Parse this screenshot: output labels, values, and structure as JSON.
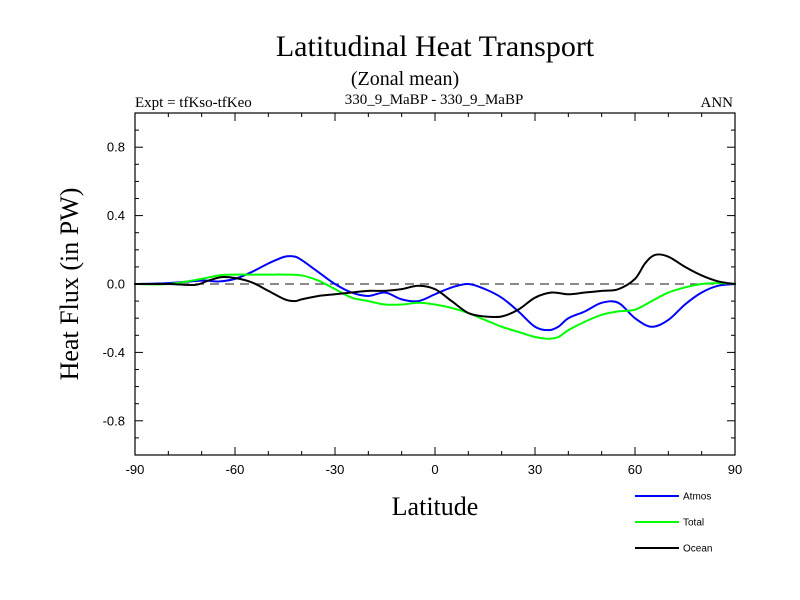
{
  "chart_data": {
    "type": "line",
    "title": "Latitudinal Heat Transport",
    "subtitle": "(Zonal mean)",
    "left_label": "Expt = tfKso-tfKeo",
    "center_label": "330_9_MaBP - 330_9_MaBP",
    "right_label": "ANN",
    "xlabel": "Latitude",
    "ylabel": "Heat Flux (in PW)",
    "xlim": [
      -90,
      90
    ],
    "ylim": [
      -1.0,
      1.0
    ],
    "xticks": [
      -90,
      -60,
      -30,
      0,
      30,
      60,
      90
    ],
    "xtick_labels": [
      "-90",
      "-60",
      "-30",
      "0",
      "30",
      "60",
      "90"
    ],
    "yticks": [
      0.8,
      0.4,
      0.0,
      -0.4,
      -0.8
    ],
    "ytick_labels": [
      "0.8",
      "0.4",
      "0.0",
      "-0.4",
      "-0.8"
    ],
    "reference_line": 0.0,
    "series": [
      {
        "name": "Atmos",
        "color": "#0000ff",
        "x": [
          -90,
          -80,
          -70,
          -65,
          -60,
          -55,
          -50,
          -45,
          -42,
          -40,
          -35,
          -30,
          -25,
          -20,
          -15,
          -10,
          -5,
          0,
          5,
          10,
          15,
          20,
          25,
          30,
          34,
          37,
          40,
          45,
          50,
          55,
          60,
          65,
          70,
          75,
          80,
          85,
          90
        ],
        "y": [
          0.0,
          0.005,
          0.02,
          0.015,
          0.03,
          0.07,
          0.12,
          0.16,
          0.16,
          0.14,
          0.07,
          0.0,
          -0.05,
          -0.07,
          -0.05,
          -0.09,
          -0.1,
          -0.06,
          -0.02,
          0.0,
          -0.03,
          -0.08,
          -0.16,
          -0.25,
          -0.27,
          -0.25,
          -0.2,
          -0.16,
          -0.11,
          -0.11,
          -0.2,
          -0.25,
          -0.21,
          -0.12,
          -0.05,
          -0.01,
          0.0
        ]
      },
      {
        "name": "Total",
        "color": "#00ff00",
        "x": [
          -90,
          -80,
          -70,
          -65,
          -60,
          -55,
          -50,
          -45,
          -40,
          -35,
          -30,
          -25,
          -20,
          -15,
          -10,
          -5,
          0,
          5,
          10,
          15,
          20,
          25,
          30,
          34,
          37,
          40,
          45,
          50,
          55,
          60,
          65,
          70,
          75,
          80,
          85,
          90
        ],
        "y": [
          0.0,
          0.0,
          0.03,
          0.05,
          0.055,
          0.055,
          0.055,
          0.055,
          0.05,
          0.02,
          -0.03,
          -0.08,
          -0.1,
          -0.12,
          -0.12,
          -0.11,
          -0.12,
          -0.14,
          -0.17,
          -0.21,
          -0.25,
          -0.28,
          -0.31,
          -0.32,
          -0.31,
          -0.27,
          -0.22,
          -0.18,
          -0.16,
          -0.15,
          -0.1,
          -0.05,
          -0.02,
          0.0,
          0.005,
          0.0
        ]
      },
      {
        "name": "Ocean",
        "color": "#000000",
        "x": [
          -90,
          -80,
          -72,
          -68,
          -64,
          -60,
          -55,
          -50,
          -45,
          -42,
          -40,
          -35,
          -30,
          -25,
          -20,
          -15,
          -10,
          -5,
          0,
          5,
          10,
          15,
          20,
          25,
          30,
          35,
          40,
          45,
          50,
          55,
          60,
          63,
          66,
          70,
          75,
          80,
          85,
          90
        ],
        "y": [
          0.0,
          0.0,
          -0.005,
          0.02,
          0.04,
          0.035,
          0.01,
          -0.04,
          -0.09,
          -0.1,
          -0.09,
          -0.07,
          -0.06,
          -0.05,
          -0.04,
          -0.04,
          -0.03,
          -0.01,
          -0.03,
          -0.1,
          -0.17,
          -0.19,
          -0.19,
          -0.15,
          -0.08,
          -0.05,
          -0.06,
          -0.05,
          -0.04,
          -0.03,
          0.03,
          0.12,
          0.17,
          0.16,
          0.1,
          0.05,
          0.015,
          0.0
        ]
      }
    ]
  }
}
